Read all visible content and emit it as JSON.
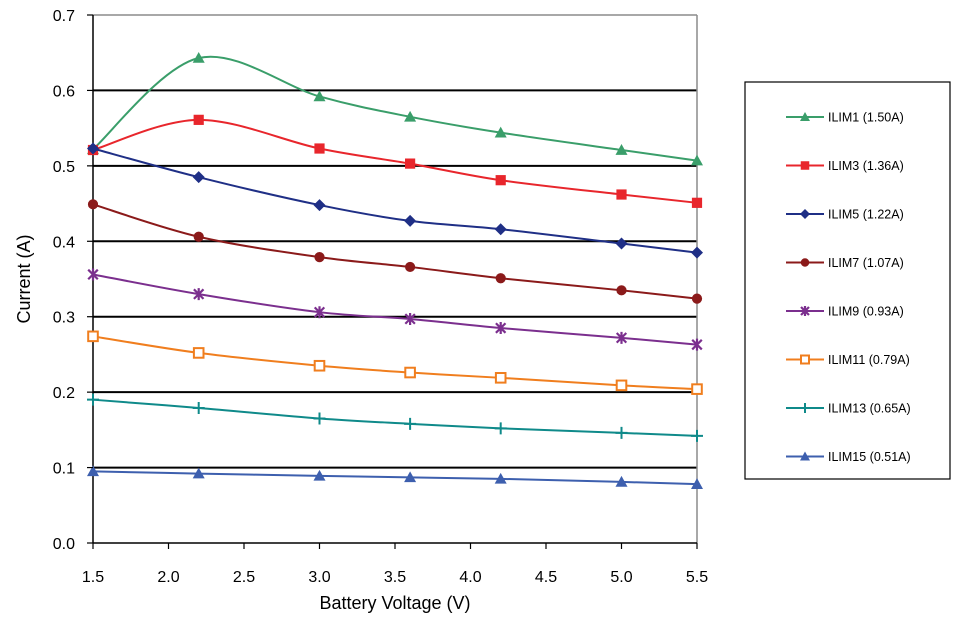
{
  "chart_data": {
    "type": "line",
    "xlabel": "Battery Voltage (V)",
    "ylabel": "Current (A)",
    "xlim": [
      1.5,
      5.5
    ],
    "ylim": [
      0.0,
      0.7
    ],
    "x_ticks": [
      "1.5",
      "2.0",
      "2.5",
      "3.0",
      "3.5",
      "4.0",
      "4.5",
      "5.0",
      "5.5"
    ],
    "y_ticks": [
      "0.0",
      "0.1",
      "0.2",
      "0.3",
      "0.4",
      "0.5",
      "0.6",
      "0.7"
    ],
    "grid": "horizontal major gridlines at 0.1, 0.2, 0.3, 0.4, 0.5, 0.6",
    "legend_position": "right",
    "x": [
      1.5,
      2.2,
      3.0,
      3.6,
      4.2,
      5.0,
      5.5
    ],
    "series": [
      {
        "name": "ILIM1 (1.50A)",
        "color": "#3a9e6a",
        "marker": "triangle",
        "values": [
          0.522,
          0.643,
          0.592,
          0.565,
          0.544,
          0.521,
          0.507
        ]
      },
      {
        "name": "ILIM3 (1.36A)",
        "color": "#e8262c",
        "marker": "square",
        "values": [
          0.521,
          0.561,
          0.523,
          0.503,
          0.481,
          0.462,
          0.451
        ]
      },
      {
        "name": "ILIM5 (1.22A)",
        "color": "#1f2f86",
        "marker": "diamond",
        "values": [
          0.523,
          0.485,
          0.448,
          0.427,
          0.416,
          0.397,
          0.385
        ]
      },
      {
        "name": "ILIM7 (1.07A)",
        "color": "#8b1a1a",
        "marker": "circle",
        "values": [
          0.449,
          0.406,
          0.379,
          0.366,
          0.351,
          0.335,
          0.324
        ]
      },
      {
        "name": "ILIM9 (0.93A)",
        "color": "#7b2f8e",
        "marker": "star",
        "values": [
          0.356,
          0.33,
          0.306,
          0.297,
          0.285,
          0.272,
          0.263
        ]
      },
      {
        "name": "ILIM11 (0.79A)",
        "color": "#f07e1e",
        "marker": "open-square",
        "values": [
          0.274,
          0.252,
          0.235,
          0.226,
          0.219,
          0.209,
          0.204
        ]
      },
      {
        "name": "ILIM13 (0.65A)",
        "color": "#0f8a8a",
        "marker": "plus",
        "values": [
          0.19,
          0.179,
          0.165,
          0.158,
          0.152,
          0.146,
          0.142
        ]
      },
      {
        "name": "ILIM15 (0.51A)",
        "color": "#3d5fae",
        "marker": "triangle",
        "values": [
          0.095,
          0.092,
          0.089,
          0.087,
          0.085,
          0.081,
          0.078
        ]
      }
    ]
  }
}
